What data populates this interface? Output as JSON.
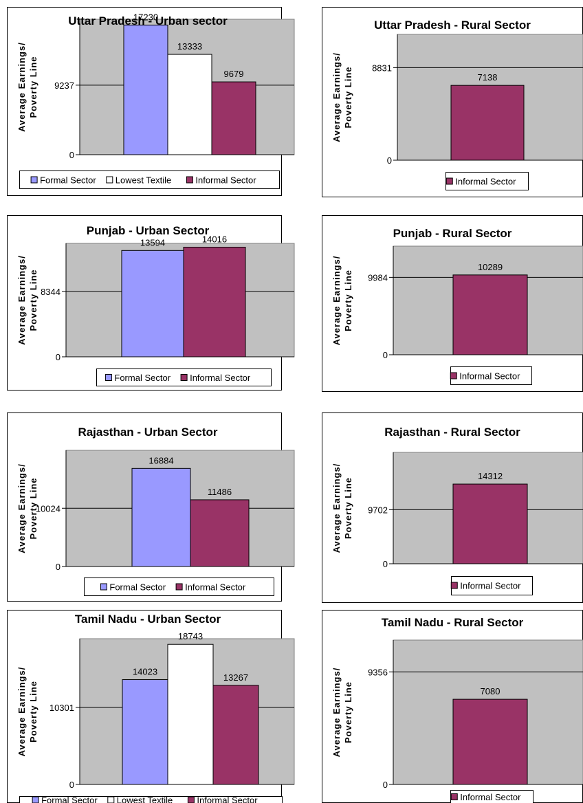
{
  "ylabel_line1": "Average Earnings/",
  "ylabel_line2": "Poverty Line",
  "colors": {
    "formal": "#9999ff",
    "lowest": "#ffffff",
    "informal": "#993366",
    "plot_bg": "#c0c0c0"
  },
  "chart_data": [
    {
      "type": "bar",
      "title": "Uttar Pradesh - Urban sector",
      "categories": [
        "Formal Sector",
        "Lowest Textile",
        "Informal Sector"
      ],
      "values": [
        17230,
        13333,
        9679
      ],
      "ylabel": "Average Earnings/ Poverty Line",
      "poverty_line": 9237,
      "ylim": [
        0,
        18000
      ],
      "yticks": [
        0,
        9237
      ],
      "legend": {
        "placement": "bottom",
        "entries": [
          "Formal Sector",
          "Lowest Textile",
          "Informal Sector"
        ]
      }
    },
    {
      "type": "bar",
      "title": "Uttar Pradesh - Rural Sector",
      "categories": [
        "Informal Sector"
      ],
      "values": [
        7138
      ],
      "ylabel": "Average Earnings/ Poverty Line",
      "poverty_line": 8831,
      "ylim": [
        0,
        12000
      ],
      "yticks": [
        0,
        8831
      ],
      "legend": {
        "placement": "bottom",
        "entries": [
          "Informal Sector"
        ]
      }
    },
    {
      "type": "bar",
      "title": "Punjab - Urban Sector",
      "categories": [
        "Formal Sector",
        "Informal Sector"
      ],
      "values": [
        13594,
        14016
      ],
      "ylabel": "Average Earnings/ Poverty Line",
      "poverty_line": 8344,
      "ylim": [
        0,
        14500
      ],
      "yticks": [
        0,
        8344
      ],
      "legend": {
        "placement": "bottom",
        "entries": [
          "Formal Sector",
          "Informal Sector"
        ]
      }
    },
    {
      "type": "bar",
      "title": "Punjab - Rural Sector",
      "categories": [
        "Informal Sector"
      ],
      "values": [
        10289
      ],
      "ylabel": "Average Earnings/ Poverty Line",
      "poverty_line": 9984,
      "ylim": [
        0,
        14000
      ],
      "yticks": [
        0,
        9984
      ],
      "legend": {
        "placement": "bottom",
        "entries": [
          "Informal Sector"
        ]
      }
    },
    {
      "type": "bar",
      "title": "Rajasthan - Urban Sector",
      "categories": [
        "Formal Sector",
        "Informal Sector"
      ],
      "values": [
        16884,
        11486
      ],
      "ylabel": "Average Earnings/ Poverty Line",
      "poverty_line": 10024,
      "ylim": [
        0,
        20000
      ],
      "yticks": [
        0,
        10024
      ],
      "legend": {
        "placement": "bottom",
        "entries": [
          "Formal Sector",
          "Informal Sector"
        ]
      }
    },
    {
      "type": "bar",
      "title": "Rajasthan - Rural Sector",
      "categories": [
        "Informal Sector"
      ],
      "values": [
        14312
      ],
      "ylabel": "Average Earnings/ Poverty Line",
      "poverty_line": 9702,
      "ylim": [
        0,
        20000
      ],
      "yticks": [
        0,
        9702
      ],
      "legend": {
        "placement": "bottom",
        "entries": [
          "Informal Sector"
        ]
      }
    },
    {
      "type": "bar",
      "title": "Tamil Nadu - Urban Sector",
      "categories": [
        "Formal Sector",
        "Lowest Textile",
        "Informal Sector"
      ],
      "values": [
        14023,
        18743,
        13267
      ],
      "ylabel": "Average Earnings/ Poverty Line",
      "poverty_line": 10301,
      "ylim": [
        0,
        19500
      ],
      "yticks": [
        0,
        10301
      ],
      "legend": {
        "placement": "bottom",
        "entries": [
          "Formal Sector",
          "Lowest Textile",
          "Informal Sector"
        ]
      }
    },
    {
      "type": "bar",
      "title": "Tamil Nadu - Rural Sector",
      "categories": [
        "Informal Sector"
      ],
      "values": [
        7080
      ],
      "ylabel": "Average Earnings/ Poverty Line",
      "poverty_line": 9356,
      "ylim": [
        0,
        12000
      ],
      "yticks": [
        0,
        9356
      ],
      "legend": {
        "placement": "bottom",
        "entries": [
          "Informal Sector"
        ]
      }
    }
  ]
}
